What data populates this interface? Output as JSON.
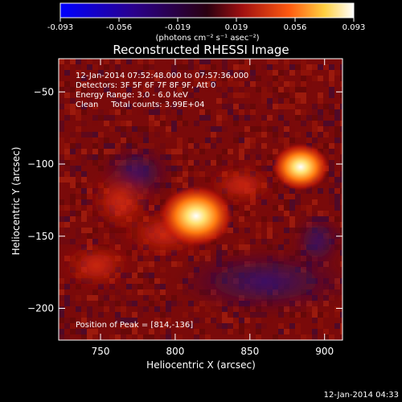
{
  "chart_data": {
    "type": "heatmap",
    "title": "Reconstructed RHESSI Image",
    "xlabel": "Heliocentric X (arcsec)",
    "ylabel": "Heliocentric Y (arcsec)",
    "xlim": [
      722,
      912
    ],
    "ylim": [
      -222,
      -27
    ],
    "x_ticks": [
      750,
      800,
      850,
      900
    ],
    "y_ticks": [
      -50,
      -100,
      -150,
      -200
    ],
    "colorbar": {
      "ticks": [
        "-0.093",
        "-0.056",
        "-0.019",
        "0.019",
        "0.056",
        "0.093"
      ],
      "units_label": "(photons cm⁻² s⁻¹ asec⁻²)",
      "range": [
        -0.093,
        0.093
      ]
    },
    "annotations": [
      "12-Jan-2014 07:52:48.000 to 07:57:36.000",
      "Detectors: 3F 5F 6F 7F 8F 9F, Att 0",
      "Energy Range: 3.0 - 6.0 keV",
      "Clean     Total counts: 3.99E+04"
    ],
    "peak_text": "Position of Peak = [814,-136]",
    "sources": [
      {
        "x": 814,
        "y": -136,
        "value": 0.093
      },
      {
        "x": 884,
        "y": -102,
        "value": 0.072
      }
    ],
    "footer_timestamp": "12-Jan-2014 04:33"
  }
}
